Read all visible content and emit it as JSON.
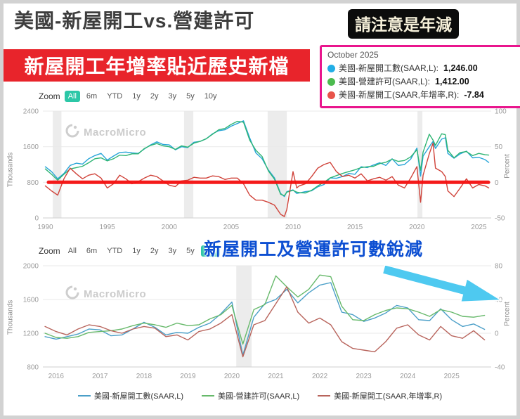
{
  "page": {
    "title": "美國-新屋開工vs.營建許可",
    "note_badge": "請注意是年減",
    "annotation_top": "新屋開工年增率貼近歷史新檔",
    "annotation_bottom": "新屋開工及營運許可數銳減",
    "watermark": "MacroMicro"
  },
  "colors": {
    "accent_teal": "#2cc7a7",
    "tooltip_border": "#e9158d",
    "banner_red": "#e8242b",
    "annotation_blue": "#0d4fd2",
    "arrow_cyan": "#4ec9f0",
    "annotation_line_red": "#f50f0f"
  },
  "tooltip": {
    "date": "October 2025",
    "rows": [
      {
        "label": "美國-新屋開工數(SAAR,L):",
        "value": "1,246.00",
        "color": "#22aee6"
      },
      {
        "label": "美國-營建許可(SAAR,L):",
        "value": "1,412.00",
        "color": "#4cbb4f"
      },
      {
        "label": "美國-新屋開工(SAAR,年增率,R):",
        "value": "-7.84",
        "color": "#e8544a"
      }
    ]
  },
  "zoom_controls": {
    "label": "Zoom",
    "options": [
      "All",
      "6m",
      "YTD",
      "1y",
      "2y",
      "3y",
      "5y",
      "10y"
    ],
    "chart1_selected": "All",
    "chart2_selected": "10y"
  },
  "bottom_legend": [
    {
      "label": "美國-新屋開工數(SAAR,L)",
      "color": "#4b9fc8"
    },
    {
      "label": "美國-營建許可(SAAR,L)",
      "color": "#67b96b"
    },
    {
      "label": "美國-新屋開工(SAAR,年增率,R)",
      "color": "#b8645c"
    }
  ],
  "chart_data": [
    {
      "type": "line",
      "x_range": [
        1989.8,
        2026.0
      ],
      "x_ticks": [
        1990,
        1995,
        2000,
        2005,
        2010,
        2015,
        2020,
        2025
      ],
      "y_left": {
        "label": "Thousands",
        "range": [
          0,
          2400
        ],
        "ticks": [
          0,
          800,
          1600,
          2400
        ]
      },
      "y_right": {
        "label": "Percent",
        "range": [
          -50,
          100
        ],
        "ticks": [
          -50,
          0,
          50,
          100
        ]
      },
      "bands": [
        [
          1990.6,
          1991.3
        ],
        [
          2001.2,
          2001.95
        ],
        [
          2007.95,
          2009.5
        ],
        [
          2020.05,
          2020.45
        ]
      ],
      "annotation_hline": {
        "axis": "right",
        "value": 0,
        "color": "#f50f0f",
        "width": 5
      },
      "x": [
        1990.0,
        1990.5,
        1991.0,
        1991.5,
        1992.0,
        1992.5,
        1993.0,
        1993.5,
        1994.0,
        1994.5,
        1995.0,
        1995.5,
        1996.0,
        1996.5,
        1997.0,
        1997.5,
        1998.0,
        1998.5,
        1999.0,
        1999.5,
        2000.0,
        2000.5,
        2001.0,
        2001.5,
        2002.0,
        2002.5,
        2003.0,
        2003.5,
        2004.0,
        2004.5,
        2005.0,
        2005.5,
        2006.0,
        2006.5,
        2007.0,
        2007.5,
        2008.0,
        2008.5,
        2009.0,
        2009.3,
        2009.5,
        2010.0,
        2010.3,
        2010.5,
        2011.0,
        2011.5,
        2012.0,
        2012.5,
        2013.0,
        2013.5,
        2014.0,
        2014.5,
        2015.0,
        2015.5,
        2016.0,
        2016.5,
        2017.0,
        2017.5,
        2018.0,
        2018.5,
        2019.0,
        2019.5,
        2020.0,
        2020.3,
        2020.5,
        2021.0,
        2021.3,
        2021.5,
        2022.0,
        2022.3,
        2022.5,
        2023.0,
        2023.5,
        2024.0,
        2024.5,
        2025.0,
        2025.5,
        2025.8
      ],
      "series": [
        {
          "name": "美國-新屋開工數(SAAR,L)",
          "axis": "left",
          "color": "#27a5d8",
          "values": [
            1150,
            1040,
            880,
            1000,
            1180,
            1230,
            1210,
            1330,
            1400,
            1450,
            1300,
            1390,
            1470,
            1480,
            1460,
            1450,
            1550,
            1640,
            1710,
            1650,
            1640,
            1530,
            1600,
            1580,
            1700,
            1720,
            1780,
            1890,
            1960,
            1980,
            2060,
            2120,
            2180,
            1800,
            1460,
            1330,
            1080,
            900,
            550,
            480,
            590,
            630,
            550,
            560,
            590,
            610,
            700,
            750,
            900,
            890,
            930,
            1000,
            980,
            1150,
            1130,
            1190,
            1240,
            1180,
            1330,
            1180,
            1200,
            1320,
            1570,
            940,
            1390,
            1600,
            1720,
            1560,
            1770,
            1800,
            1450,
            1340,
            1440,
            1500,
            1350,
            1360,
            1310,
            1246
          ]
        },
        {
          "name": "美國-營建許可(SAAR,L)",
          "axis": "left",
          "color": "#2fb574",
          "values": [
            1100,
            980,
            850,
            980,
            1100,
            1130,
            1160,
            1240,
            1330,
            1350,
            1280,
            1330,
            1410,
            1400,
            1440,
            1440,
            1560,
            1630,
            1670,
            1620,
            1600,
            1540,
            1620,
            1590,
            1680,
            1720,
            1780,
            1880,
            1980,
            2010,
            2100,
            2170,
            2150,
            1750,
            1520,
            1380,
            1060,
            870,
            530,
            500,
            580,
            620,
            580,
            570,
            560,
            620,
            720,
            800,
            900,
            950,
            1000,
            1040,
            1080,
            1130,
            1150,
            1160,
            1220,
            1250,
            1320,
            1270,
            1290,
            1370,
            1530,
            1070,
            1480,
            1880,
            1750,
            1630,
            1890,
            1870,
            1520,
            1350,
            1470,
            1490,
            1400,
            1450,
            1420,
            1412
          ]
        },
        {
          "name": "美國-新屋開工(SAAR,年增率,R)",
          "axis": "right",
          "color": "#d0433a",
          "values": [
            -5,
            -12,
            -18,
            5,
            20,
            12,
            5,
            10,
            12,
            6,
            -8,
            -2,
            10,
            5,
            -2,
            1,
            6,
            10,
            8,
            2,
            -4,
            -6,
            2,
            3,
            7,
            6,
            6,
            9,
            8,
            4,
            6,
            6,
            -2,
            -18,
            -25,
            -25,
            -28,
            -32,
            -45,
            -48,
            -38,
            15,
            -8,
            -5,
            -2,
            8,
            20,
            25,
            28,
            15,
            8,
            10,
            6,
            12,
            2,
            5,
            7,
            3,
            8,
            -4,
            -8,
            6,
            22,
            -28,
            10,
            40,
            55,
            20,
            15,
            8,
            -12,
            -20,
            -8,
            5,
            -8,
            -3,
            -5,
            -7.84
          ]
        }
      ]
    },
    {
      "type": "line",
      "x_range": [
        2015.7,
        2025.9
      ],
      "x_ticks": [
        2016,
        2017,
        2018,
        2019,
        2020,
        2021,
        2022,
        2023,
        2024,
        2025
      ],
      "y_left": {
        "label": "Thousands",
        "range": [
          800,
          2000
        ],
        "ticks": [
          800,
          1200,
          1600,
          2000
        ]
      },
      "y_right": {
        "label": "Percent",
        "range": [
          -40,
          80
        ],
        "ticks": [
          -40,
          0,
          40,
          80
        ]
      },
      "bands": [
        [
          2020.1,
          2020.45
        ]
      ],
      "x": [
        2015.75,
        2016.0,
        2016.25,
        2016.5,
        2016.75,
        2017.0,
        2017.25,
        2017.5,
        2017.75,
        2018.0,
        2018.25,
        2018.5,
        2018.75,
        2019.0,
        2019.25,
        2019.5,
        2019.75,
        2020.0,
        2020.25,
        2020.5,
        2020.75,
        2021.0,
        2021.25,
        2021.5,
        2021.75,
        2022.0,
        2022.25,
        2022.5,
        2022.75,
        2023.0,
        2023.25,
        2023.5,
        2023.75,
        2024.0,
        2024.25,
        2024.5,
        2024.75,
        2025.0,
        2025.25,
        2025.5,
        2025.75
      ],
      "series": [
        {
          "name": "美國-新屋開工數(SAAR,L)",
          "axis": "left",
          "color": "#4b9fc8",
          "values": [
            1160,
            1130,
            1160,
            1190,
            1250,
            1240,
            1170,
            1180,
            1250,
            1330,
            1270,
            1180,
            1210,
            1200,
            1270,
            1320,
            1430,
            1570,
            940,
            1390,
            1550,
            1600,
            1720,
            1560,
            1680,
            1770,
            1800,
            1450,
            1420,
            1340,
            1380,
            1440,
            1530,
            1500,
            1360,
            1350,
            1490,
            1360,
            1280,
            1310,
            1246
          ]
        },
        {
          "name": "美國-營建許可(SAAR,L)",
          "axis": "left",
          "color": "#67b96b",
          "values": [
            1200,
            1150,
            1140,
            1160,
            1210,
            1220,
            1230,
            1250,
            1290,
            1320,
            1300,
            1270,
            1320,
            1290,
            1300,
            1370,
            1420,
            1530,
            1070,
            1480,
            1540,
            1880,
            1750,
            1630,
            1720,
            1890,
            1870,
            1520,
            1360,
            1350,
            1420,
            1470,
            1500,
            1490,
            1450,
            1400,
            1480,
            1450,
            1400,
            1390,
            1412
          ]
        },
        {
          "name": "美國-新屋開工(SAAR,年增率,R)",
          "axis": "right",
          "color": "#b8645c",
          "values": [
            8,
            2,
            -2,
            5,
            10,
            8,
            3,
            0,
            5,
            8,
            6,
            -4,
            -2,
            -8,
            2,
            5,
            12,
            22,
            -28,
            10,
            15,
            35,
            55,
            25,
            12,
            18,
            10,
            -10,
            -18,
            -20,
            -22,
            -10,
            6,
            10,
            -2,
            -8,
            8,
            -3,
            -6,
            3,
            -7.84
          ]
        }
      ]
    }
  ]
}
